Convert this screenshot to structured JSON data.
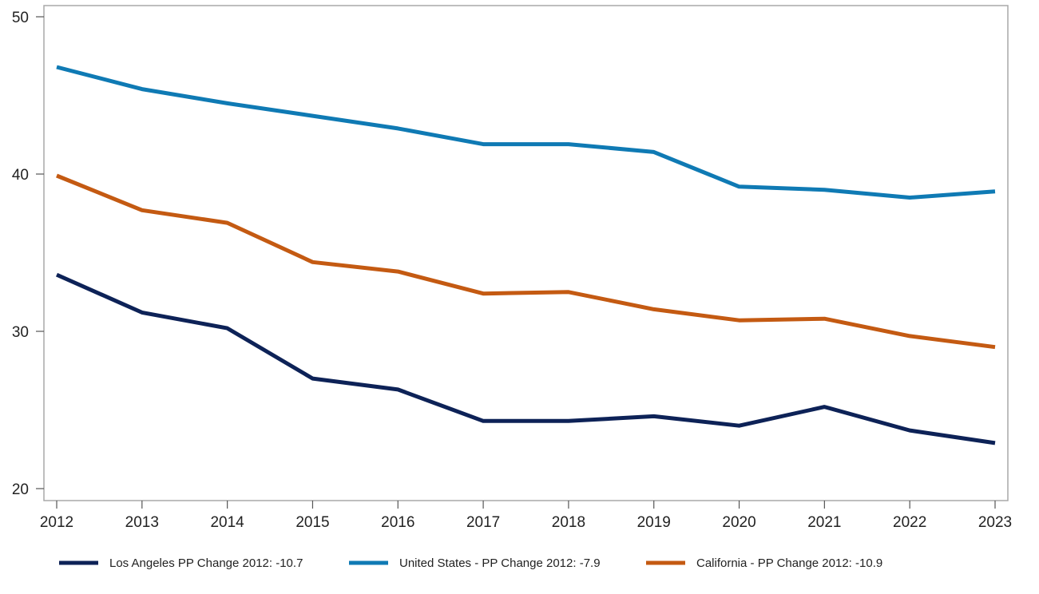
{
  "chart_data": {
    "type": "line",
    "title": "",
    "xlabel": "",
    "ylabel": "",
    "x": [
      "2012",
      "2013",
      "2014",
      "2015",
      "2016",
      "2017",
      "2018",
      "2019",
      "2020",
      "2021",
      "2022",
      "2023"
    ],
    "yticks": [
      "20",
      "30",
      "40",
      "50"
    ],
    "ylim": [
      20,
      50
    ],
    "grid": false,
    "legend_position": "bottom",
    "series": [
      {
        "name": "Los Angeles PP Change 2012: -10.7",
        "color": "#0d2257",
        "values": [
          33.6,
          31.2,
          30.2,
          27.0,
          26.3,
          24.3,
          24.3,
          24.6,
          24.0,
          25.2,
          23.7,
          22.9
        ]
      },
      {
        "name": "United States - PP Change 2012: -7.9",
        "color": "#0f7ab4",
        "values": [
          46.8,
          45.4,
          44.5,
          43.7,
          42.9,
          41.9,
          41.9,
          41.4,
          39.2,
          39.0,
          38.5,
          38.9
        ]
      },
      {
        "name": "California - PP Change 2012: -10.9",
        "color": "#c45a12",
        "values": [
          39.9,
          37.7,
          36.9,
          34.4,
          33.8,
          32.4,
          32.5,
          31.4,
          30.7,
          30.8,
          29.7,
          29.0
        ]
      }
    ]
  }
}
